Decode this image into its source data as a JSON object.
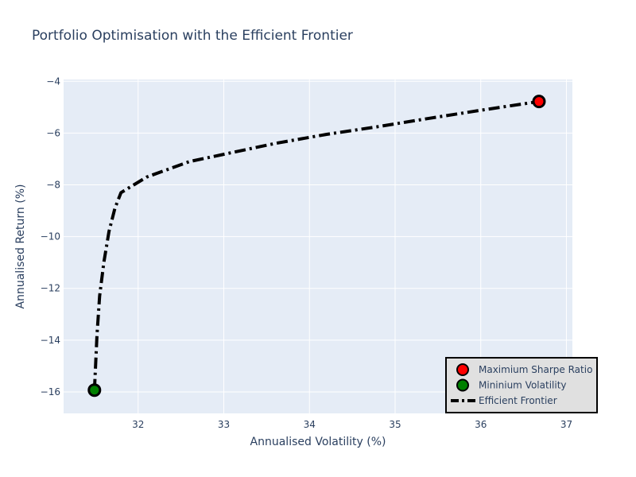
{
  "chart_data": {
    "type": "scatter",
    "title": "Portfolio Optimisation with the Efficient Frontier",
    "xlabel": "Annualised Volatility (%)",
    "ylabel": "Annualised Return (%)",
    "xlim": [
      31.13,
      37.07
    ],
    "ylim": [
      -16.83,
      -3.93
    ],
    "xticks": [
      32,
      33,
      34,
      35,
      36,
      37
    ],
    "yticks": [
      -16,
      -14,
      -12,
      -10,
      -8,
      -6,
      -4
    ],
    "xtick_labels": [
      "32",
      "33",
      "34",
      "35",
      "36",
      "37"
    ],
    "ytick_labels": [
      "−16",
      "−14",
      "−12",
      "−10",
      "−8",
      "−6",
      "−4"
    ],
    "grid": true,
    "legend_position": "bottom-right",
    "series": [
      {
        "name": "Maximium Sharpe Ratio",
        "mode": "markers",
        "color": "#ff0000",
        "x": [
          36.68
        ],
        "y": [
          -4.78
        ]
      },
      {
        "name": "Mininium Volatility",
        "mode": "markers",
        "color": "#008000",
        "x": [
          31.49
        ],
        "y": [
          -15.93
        ]
      },
      {
        "name": "Efficient Frontier",
        "mode": "lines",
        "line_style": "dashdot",
        "color": "#000000",
        "x": [
          31.49,
          31.52,
          31.55,
          31.6,
          31.66,
          31.73,
          31.8,
          32.1,
          32.6,
          33.1,
          33.6,
          34.2,
          34.8,
          35.4,
          36.0,
          36.68
        ],
        "y": [
          -15.93,
          -13.8,
          -12.3,
          -11.0,
          -9.8,
          -8.9,
          -8.3,
          -7.7,
          -7.1,
          -6.75,
          -6.4,
          -6.05,
          -5.75,
          -5.43,
          -5.12,
          -4.78
        ]
      }
    ]
  },
  "colors": {
    "plot_background": "#e5ecf6",
    "grid": "#ffffff",
    "legend_background": "#e0e0e0",
    "legend_border": "#000000",
    "text": "#2a3f5f"
  }
}
